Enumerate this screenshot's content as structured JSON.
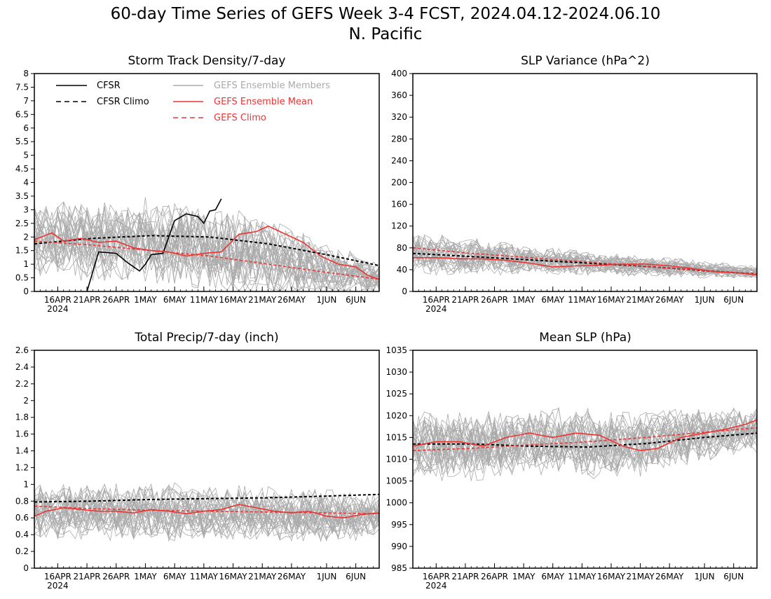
{
  "figure": {
    "title_line1": "60-day Time Series of GEFS Week 3-4 FCST, 2024.04.12-2024.06.10",
    "title_line2": "N. Pacific"
  },
  "legend": {
    "cfsr": "CFSR",
    "cfsr_climo": "CFSR Climo",
    "members": "GEFS Ensemble Members",
    "mean": "GEFS Ensemble Mean",
    "gefs_climo": "GEFS Climo"
  },
  "colors": {
    "cfsr": "#000000",
    "members": "#aaaaaa",
    "mean": "#ee3333",
    "gefs_climo": "#ee3333"
  },
  "x_axis": {
    "start": "2024-04-12",
    "end": "2024-06-10",
    "ticks": [
      "16APR",
      "21APR",
      "26APR",
      "1MAY",
      "6MAY",
      "11MAY",
      "16MAY",
      "21MAY",
      "26MAY",
      "1JUN",
      "6JUN"
    ],
    "year_label": "2024"
  },
  "chart_data": [
    {
      "type": "line",
      "title": "Storm Track Density/7-day",
      "ylim": [
        0,
        8
      ],
      "yticks": [
        "0",
        "0.5",
        "1",
        "1.5",
        "2",
        "2.5",
        "3",
        "3.5",
        "4",
        "4.5",
        "5",
        "5.5",
        "6",
        "6.5",
        "7",
        "7.5",
        "8"
      ],
      "members": {
        "count": 30,
        "center": [
          1.9,
          1.9,
          1.8,
          1.4,
          0.9,
          0.5
        ],
        "spread": [
          1.2,
          1.3,
          1.4,
          1.4,
          1.1,
          0.5
        ]
      },
      "series": [
        {
          "role": "cfsr",
          "name": "CFSR",
          "x": [
            "2024-04-21",
            "2024-04-23",
            "2024-04-26",
            "2024-04-28",
            "2024-04-30",
            "2024-05-01",
            "2024-05-02",
            "2024-05-04",
            "2024-05-06",
            "2024-05-08",
            "2024-05-10",
            "2024-05-11",
            "2024-05-12",
            "2024-05-13",
            "2024-05-14"
          ],
          "values": [
            0,
            1.45,
            1.4,
            1.05,
            0.75,
            1.0,
            1.35,
            1.4,
            2.6,
            2.85,
            2.75,
            2.5,
            2.95,
            3.0,
            3.4
          ]
        },
        {
          "role": "cfsr_climo",
          "name": "CFSR Climo",
          "x": [
            "2024-04-12",
            "2024-04-22",
            "2024-05-02",
            "2024-05-12",
            "2024-05-22",
            "2024-06-01",
            "2024-06-10"
          ],
          "values": [
            1.75,
            1.95,
            2.05,
            2.0,
            1.75,
            1.35,
            0.95
          ]
        },
        {
          "role": "mean",
          "name": "GEFS Ensemble Mean",
          "x": [
            "2024-04-12",
            "2024-04-15",
            "2024-04-17",
            "2024-04-20",
            "2024-04-23",
            "2024-04-26",
            "2024-04-29",
            "2024-05-02",
            "2024-05-05",
            "2024-05-08",
            "2024-05-11",
            "2024-05-14",
            "2024-05-17",
            "2024-05-20",
            "2024-05-22",
            "2024-05-25",
            "2024-05-28",
            "2024-05-31",
            "2024-06-03",
            "2024-06-06",
            "2024-06-08",
            "2024-06-10"
          ],
          "values": [
            1.9,
            2.15,
            1.85,
            1.95,
            1.8,
            1.85,
            1.6,
            1.5,
            1.45,
            1.3,
            1.4,
            1.45,
            2.1,
            2.2,
            2.4,
            2.1,
            1.8,
            1.3,
            1.0,
            0.9,
            0.6,
            0.45
          ]
        },
        {
          "role": "gefs_climo",
          "name": "GEFS Climo",
          "x": [
            "2024-04-12",
            "2024-04-22",
            "2024-05-02",
            "2024-05-12",
            "2024-05-22",
            "2024-06-01",
            "2024-06-10"
          ],
          "values": [
            1.85,
            1.7,
            1.5,
            1.3,
            1.0,
            0.7,
            0.45
          ]
        }
      ]
    },
    {
      "type": "line",
      "title": "SLP Variance (hPa^2)",
      "ylim": [
        0,
        400
      ],
      "yticks": [
        "0",
        "40",
        "80",
        "120",
        "160",
        "200",
        "240",
        "280",
        "320",
        "360",
        "400"
      ],
      "members": {
        "count": 30,
        "center": [
          70,
          63,
          55,
          48,
          42,
          35
        ],
        "spread": [
          35,
          28,
          22,
          18,
          15,
          10
        ]
      },
      "series": [
        {
          "role": "cfsr_climo",
          "name": "CFSR Climo",
          "x": [
            "2024-04-12",
            "2024-04-22",
            "2024-05-02",
            "2024-05-12",
            "2024-05-22",
            "2024-06-01",
            "2024-06-10"
          ],
          "values": [
            70,
            64,
            58,
            52,
            46,
            38,
            32
          ]
        },
        {
          "role": "mean",
          "name": "GEFS Ensemble Mean",
          "x": [
            "2024-04-12",
            "2024-04-16",
            "2024-04-20",
            "2024-04-24",
            "2024-04-28",
            "2024-05-02",
            "2024-05-06",
            "2024-05-10",
            "2024-05-14",
            "2024-05-18",
            "2024-05-22",
            "2024-05-26",
            "2024-05-30",
            "2024-06-03",
            "2024-06-07",
            "2024-06-10"
          ],
          "values": [
            62,
            62,
            60,
            60,
            57,
            52,
            45,
            47,
            48,
            50,
            50,
            47,
            42,
            36,
            34,
            30
          ]
        },
        {
          "role": "gefs_climo",
          "name": "GEFS Climo",
          "x": [
            "2024-04-12",
            "2024-04-22",
            "2024-05-02",
            "2024-05-12",
            "2024-05-22",
            "2024-06-01",
            "2024-06-10"
          ],
          "values": [
            80,
            70,
            62,
            54,
            46,
            38,
            32
          ]
        }
      ]
    },
    {
      "type": "line",
      "title": "Total Precip/7-day (inch)",
      "ylim": [
        0,
        2.6
      ],
      "yticks": [
        "0",
        "0.2",
        "0.4",
        "0.6",
        "0.8",
        "1",
        "1.2",
        "1.4",
        "1.6",
        "1.8",
        "2",
        "2.2",
        "2.4",
        "2.6"
      ],
      "members": {
        "count": 30,
        "center": [
          0.7,
          0.68,
          0.67,
          0.66,
          0.64,
          0.62
        ],
        "spread": [
          0.3,
          0.3,
          0.3,
          0.28,
          0.28,
          0.25
        ]
      },
      "series": [
        {
          "role": "cfsr_climo",
          "name": "CFSR Climo",
          "x": [
            "2024-04-12",
            "2024-04-22",
            "2024-05-02",
            "2024-05-12",
            "2024-05-22",
            "2024-06-01",
            "2024-06-10"
          ],
          "values": [
            0.79,
            0.8,
            0.82,
            0.83,
            0.84,
            0.86,
            0.88
          ]
        },
        {
          "role": "mean",
          "name": "GEFS Ensemble Mean",
          "x": [
            "2024-04-12",
            "2024-04-14",
            "2024-04-17",
            "2024-04-20",
            "2024-04-23",
            "2024-04-26",
            "2024-04-29",
            "2024-05-02",
            "2024-05-05",
            "2024-05-08",
            "2024-05-11",
            "2024-05-14",
            "2024-05-17",
            "2024-05-20",
            "2024-05-23",
            "2024-05-26",
            "2024-05-29",
            "2024-06-01",
            "2024-06-04",
            "2024-06-07",
            "2024-06-10"
          ],
          "values": [
            0.62,
            0.68,
            0.72,
            0.7,
            0.68,
            0.68,
            0.66,
            0.7,
            0.68,
            0.65,
            0.68,
            0.7,
            0.76,
            0.72,
            0.68,
            0.66,
            0.68,
            0.62,
            0.6,
            0.64,
            0.66
          ]
        },
        {
          "role": "gefs_climo",
          "name": "GEFS Climo",
          "x": [
            "2024-04-12",
            "2024-04-22",
            "2024-05-02",
            "2024-05-12",
            "2024-05-22",
            "2024-06-01",
            "2024-06-10"
          ],
          "values": [
            0.74,
            0.71,
            0.69,
            0.68,
            0.67,
            0.66,
            0.65
          ]
        }
      ]
    },
    {
      "type": "line",
      "title": "Mean SLP (hPa)",
      "ylim": [
        985,
        1035
      ],
      "yticks": [
        "985",
        "990",
        "995",
        "1000",
        "1005",
        "1010",
        "1015",
        "1020",
        "1025",
        "1030",
        "1035"
      ],
      "members": {
        "count": 30,
        "center": [
          1013,
          1013,
          1014,
          1013,
          1015,
          1017
        ],
        "spread": [
          7,
          7,
          7,
          7,
          6,
          5
        ]
      },
      "series": [
        {
          "role": "cfsr_climo",
          "name": "CFSR Climo",
          "x": [
            "2024-04-12",
            "2024-04-22",
            "2024-05-02",
            "2024-05-12",
            "2024-05-22",
            "2024-06-01",
            "2024-06-10"
          ],
          "values": [
            1013.5,
            1013.5,
            1013.0,
            1012.8,
            1013.6,
            1015.0,
            1016.0
          ]
        },
        {
          "role": "mean",
          "name": "GEFS Ensemble Mean",
          "x": [
            "2024-04-12",
            "2024-04-16",
            "2024-04-20",
            "2024-04-24",
            "2024-04-28",
            "2024-05-02",
            "2024-05-06",
            "2024-05-10",
            "2024-05-14",
            "2024-05-18",
            "2024-05-21",
            "2024-05-24",
            "2024-05-28",
            "2024-06-01",
            "2024-06-05",
            "2024-06-08",
            "2024-06-10"
          ],
          "values": [
            1013,
            1014,
            1014,
            1013,
            1015,
            1016,
            1015,
            1016,
            1015.5,
            1013,
            1012,
            1012.5,
            1015,
            1016,
            1017,
            1018,
            1019
          ]
        },
        {
          "role": "gefs_climo",
          "name": "GEFS Climo",
          "x": [
            "2024-04-12",
            "2024-04-22",
            "2024-05-02",
            "2024-05-12",
            "2024-05-22",
            "2024-06-01",
            "2024-06-10"
          ],
          "values": [
            1012.0,
            1012.5,
            1013.3,
            1014.0,
            1015.0,
            1016.2,
            1017.2
          ]
        }
      ]
    }
  ]
}
